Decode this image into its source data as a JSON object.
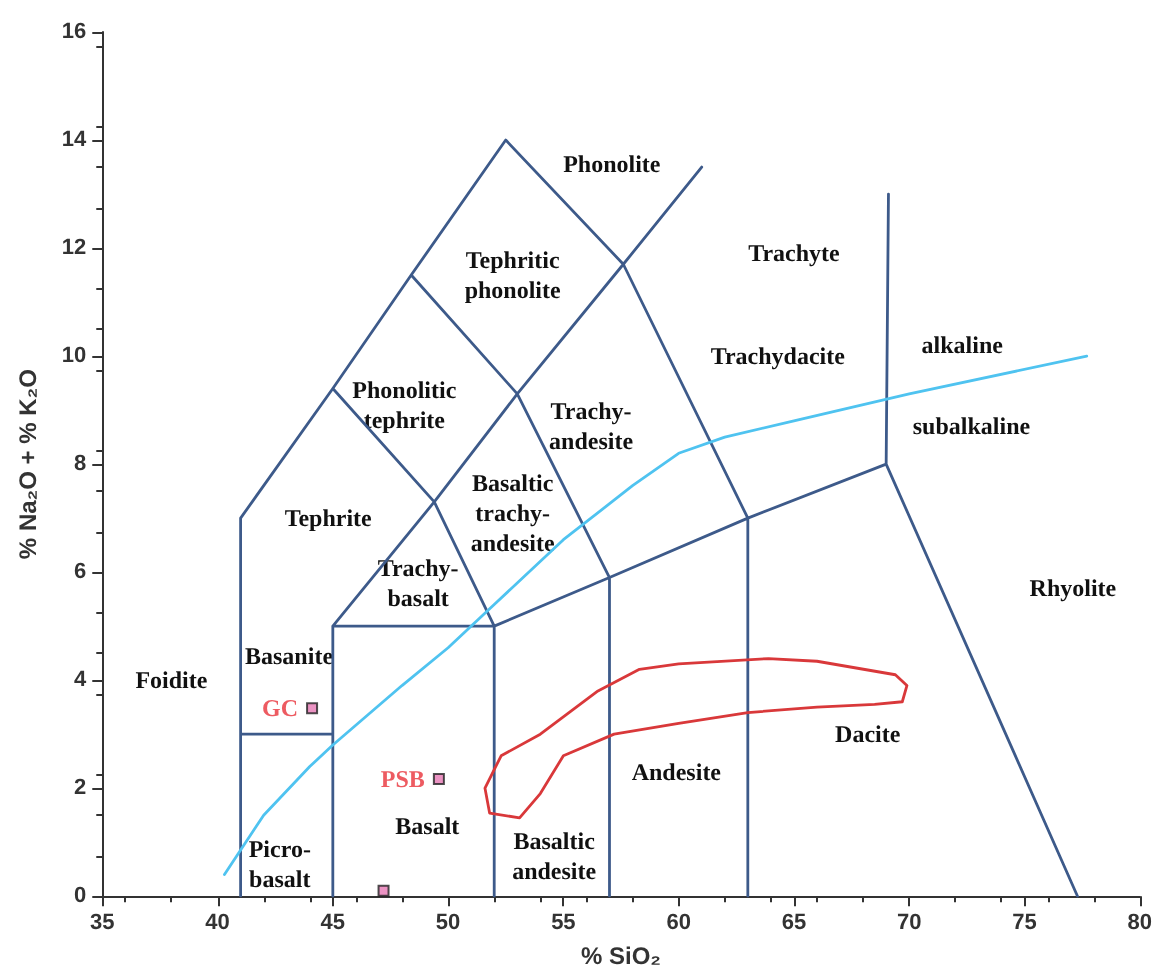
{
  "chart_data": {
    "type": "line",
    "xlabel": "% SiO₂",
    "ylabel": "% Na₂O + % K₂O",
    "xlim": [
      35,
      80
    ],
    "xticks": [
      35,
      40,
      45,
      50,
      55,
      60,
      65,
      70,
      75,
      80
    ],
    "ylim": [
      0,
      16
    ],
    "yticks": [
      0,
      2,
      4,
      6,
      8,
      10,
      12,
      14,
      16
    ],
    "grid": false,
    "marker": "none",
    "series": [
      {
        "color": "#3d5a8a",
        "x": [
          41,
          41,
          45,
          48.4,
          52.5,
          57.6,
          63,
          69,
          77.3,
          null,
          41,
          45,
          null,
          45,
          45,
          52,
          57,
          63,
          null,
          52,
          52,
          null,
          57,
          57,
          null,
          63,
          63,
          null,
          45,
          49.4,
          53,
          57.6,
          61,
          null,
          45,
          49.4,
          52,
          null,
          48.4,
          53,
          57,
          null,
          69,
          69.1
        ],
        "values": [
          0,
          7,
          9.4,
          11.5,
          14,
          11.7,
          7,
          8,
          0,
          null,
          3,
          3,
          null,
          0,
          5,
          5,
          5.9,
          7,
          null,
          0,
          5,
          null,
          0,
          5.9,
          null,
          0,
          7,
          null,
          5,
          7.3,
          9.3,
          11.7,
          13.5,
          null,
          9.4,
          7.3,
          5,
          null,
          11.5,
          9.3,
          5.9,
          null,
          8,
          13
        ]
      },
      {
        "color": "#4fc3f0",
        "x": [
          40.3,
          42,
          44,
          45,
          48,
          50,
          52,
          55,
          58,
          60,
          62,
          65,
          70,
          77.7
        ],
        "values": [
          0.4,
          1.5,
          2.4,
          2.8,
          3.9,
          4.6,
          5.4,
          6.6,
          7.6,
          8.2,
          8.5,
          8.8,
          9.3,
          10.0
        ]
      },
      {
        "color": "#d9383a",
        "x": [
          51.6,
          51.8,
          53.1,
          54,
          55,
          57.2,
          60,
          63,
          66,
          68.5,
          69.7,
          69.9,
          null,
          51.6,
          52.3,
          54,
          56.5,
          58.3,
          60,
          63.9,
          66,
          69.4,
          69.9
        ],
        "values": [
          2.0,
          1.54,
          1.45,
          1.9,
          2.6,
          3.0,
          3.2,
          3.4,
          3.5,
          3.55,
          3.6,
          3.9,
          null,
          2.0,
          2.6,
          3.0,
          3.8,
          4.2,
          4.3,
          4.4,
          4.35,
          4.1,
          3.9
        ]
      },
      {
        "type": "scatter",
        "marker": "square",
        "name": "GC",
        "color": "#e678b4",
        "x": [
          44.1
        ],
        "values": [
          3.48
        ]
      },
      {
        "type": "scatter",
        "marker": "square",
        "name": "PSB",
        "color": "#e678b4",
        "x": [
          49.6
        ],
        "values": [
          2.17
        ]
      },
      {
        "type": "scatter",
        "marker": "square",
        "color": "#e678b4",
        "x": [
          47.2
        ],
        "values": [
          0.1
        ]
      }
    ],
    "annotations": [
      "Foidite",
      "Basanite",
      "Picro-\nbasalt",
      "Basalt",
      "Basaltic\nandesite",
      "Andesite",
      "Dacite",
      "Rhyolite",
      "Tephrite",
      "Trachy-\nbasalt",
      "Basaltic\ntrachy-\nandesite",
      "Trachy-\nandesite",
      "Phonolitic\ntephrite",
      "Tephritic\nphonolite",
      "Phonolite",
      "Trachyte",
      "Trachydacite",
      "alkaline",
      "subalkaline"
    ]
  }
}
